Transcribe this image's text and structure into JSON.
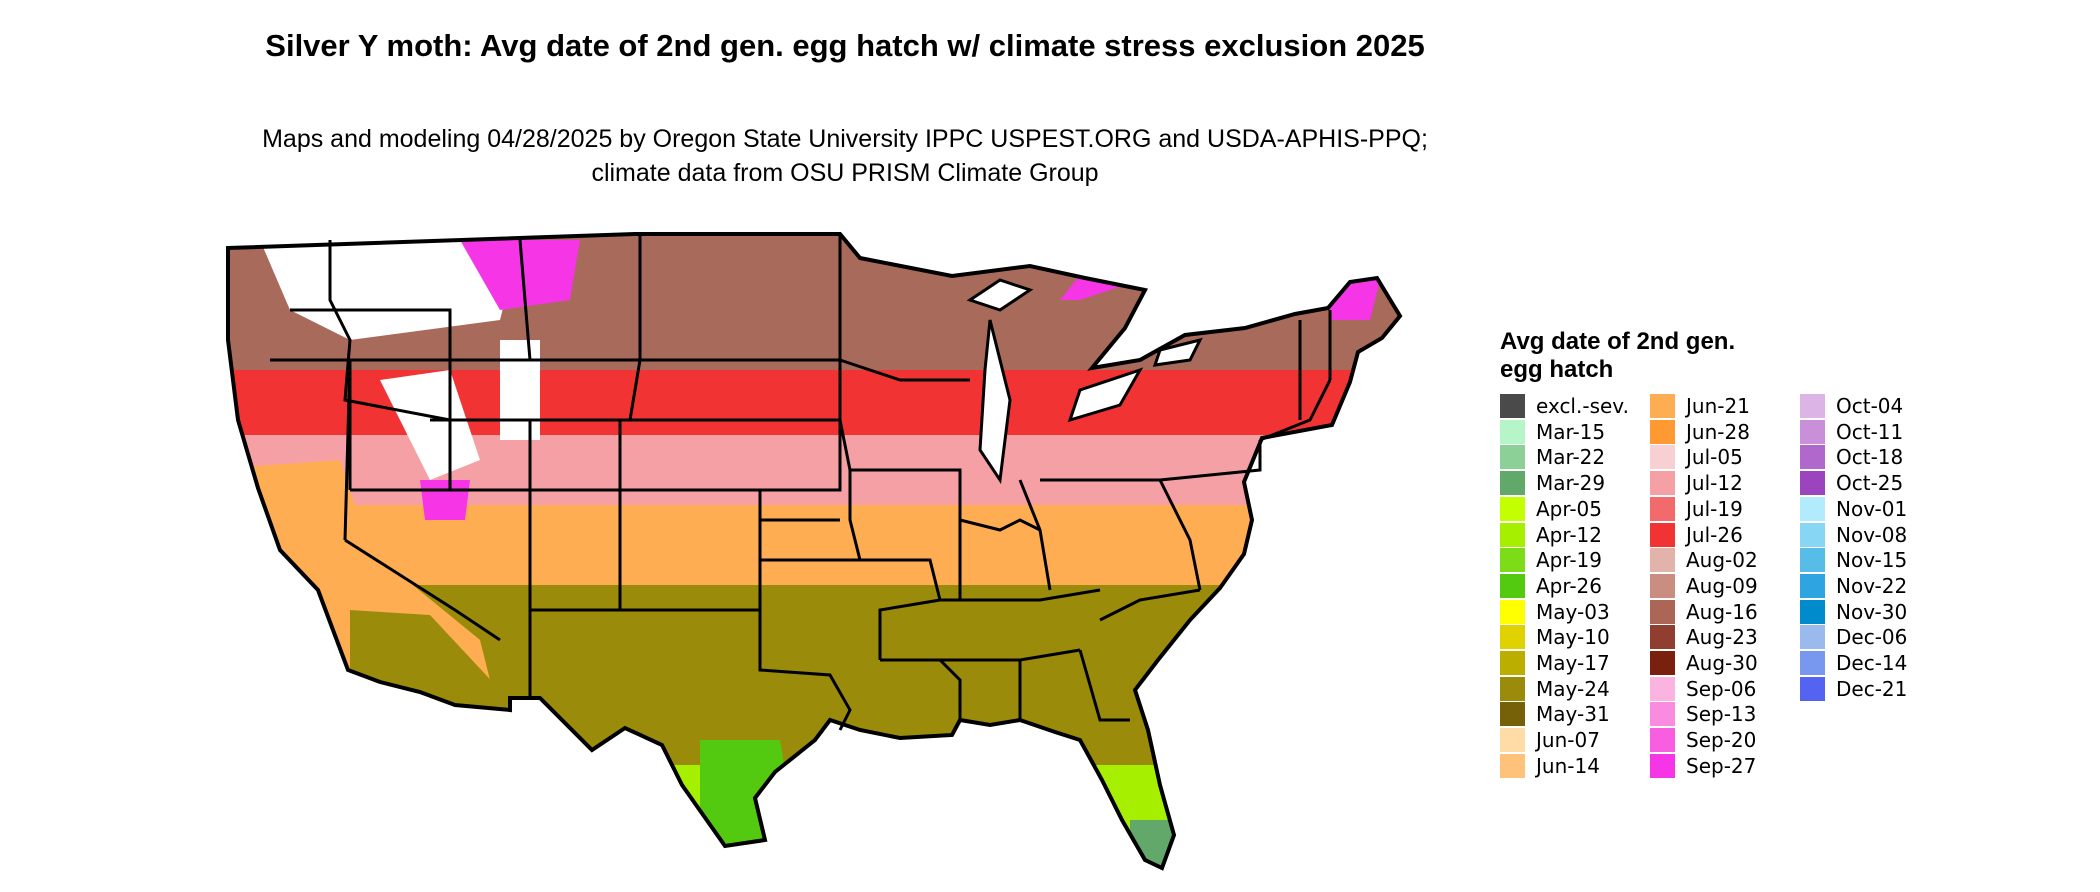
{
  "title": "Silver Y moth: Avg date of 2nd gen. egg hatch w/ climate stress exclusion 2025",
  "subtitle": "Maps and modeling 04/28/2025 by Oregon State University IPPC USPEST.ORG and USDA-APHIS-PPQ; climate data from OSU PRISM Climate Group",
  "legend": {
    "title": "Avg date of 2nd gen. egg hatch",
    "items": [
      {
        "label": "excl.-sev.",
        "color": "#4a4a4a"
      },
      {
        "label": "Mar-15",
        "color": "#b6f5c8"
      },
      {
        "label": "Mar-22",
        "color": "#8ccf97"
      },
      {
        "label": "Mar-29",
        "color": "#63a86b"
      },
      {
        "label": "Apr-05",
        "color": "#c4ff00"
      },
      {
        "label": "Apr-12",
        "color": "#a6ef00"
      },
      {
        "label": "Apr-19",
        "color": "#7cdc17"
      },
      {
        "label": "Apr-26",
        "color": "#53c90f"
      },
      {
        "label": "May-03",
        "color": "#ffff00"
      },
      {
        "label": "May-10",
        "color": "#e0d200"
      },
      {
        "label": "May-17",
        "color": "#bcae00"
      },
      {
        "label": "May-24",
        "color": "#9a8c0a"
      },
      {
        "label": "May-31",
        "color": "#766108"
      },
      {
        "label": "Jun-07",
        "color": "#ffdba6"
      },
      {
        "label": "Jun-14",
        "color": "#ffc27a"
      },
      {
        "label": "Jun-21",
        "color": "#ffad52"
      },
      {
        "label": "Jun-28",
        "color": "#ff9a33"
      },
      {
        "label": "Jul-05",
        "color": "#f8cfd3"
      },
      {
        "label": "Jul-12",
        "color": "#f5a0a4"
      },
      {
        "label": "Jul-19",
        "color": "#f36a6c"
      },
      {
        "label": "Jul-26",
        "color": "#f23333"
      },
      {
        "label": "Aug-02",
        "color": "#e2b3aa"
      },
      {
        "label": "Aug-09",
        "color": "#c98e80"
      },
      {
        "label": "Aug-16",
        "color": "#ac6656"
      },
      {
        "label": "Aug-23",
        "color": "#8f3e30"
      },
      {
        "label": "Aug-30",
        "color": "#7a200e"
      },
      {
        "label": "Sep-06",
        "color": "#fbb4e0"
      },
      {
        "label": "Sep-13",
        "color": "#f98ce0"
      },
      {
        "label": "Sep-20",
        "color": "#f75fe0"
      },
      {
        "label": "Sep-27",
        "color": "#f535e6"
      },
      {
        "label": "Oct-04",
        "color": "#dcb5e6"
      },
      {
        "label": "Oct-11",
        "color": "#c98fd9"
      },
      {
        "label": "Oct-18",
        "color": "#b168cc"
      },
      {
        "label": "Oct-25",
        "color": "#9b44be"
      },
      {
        "label": "Nov-01",
        "color": "#b2ecfc"
      },
      {
        "label": "Nov-08",
        "color": "#87d6f4"
      },
      {
        "label": "Nov-15",
        "color": "#57bde8"
      },
      {
        "label": "Nov-22",
        "color": "#2ea4e0"
      },
      {
        "label": "Nov-30",
        "color": "#008ccc"
      },
      {
        "label": "Dec-06",
        "color": "#9ab9ec"
      },
      {
        "label": "Dec-14",
        "color": "#7897ee"
      },
      {
        "label": "Dec-21",
        "color": "#5563f3"
      }
    ]
  },
  "map": {
    "region": "Contiguous United States",
    "zones": [
      {
        "name": "excluded-white",
        "color": "#ffffff"
      },
      {
        "name": "northern-tier",
        "color": "#a86a5a"
      },
      {
        "name": "north-central",
        "color": "#f5a0a4"
      },
      {
        "name": "central-red",
        "color": "#f23333"
      },
      {
        "name": "mid-latitude",
        "color": "#ffad52"
      },
      {
        "name": "southern-tier",
        "color": "#9a8c0a"
      },
      {
        "name": "gulf-coast",
        "color": "#a6ef00"
      },
      {
        "name": "south-texas",
        "color": "#53c90f"
      },
      {
        "name": "florida-tip",
        "color": "#63a86b"
      },
      {
        "name": "high-elevation",
        "color": "#f535e6"
      }
    ]
  }
}
